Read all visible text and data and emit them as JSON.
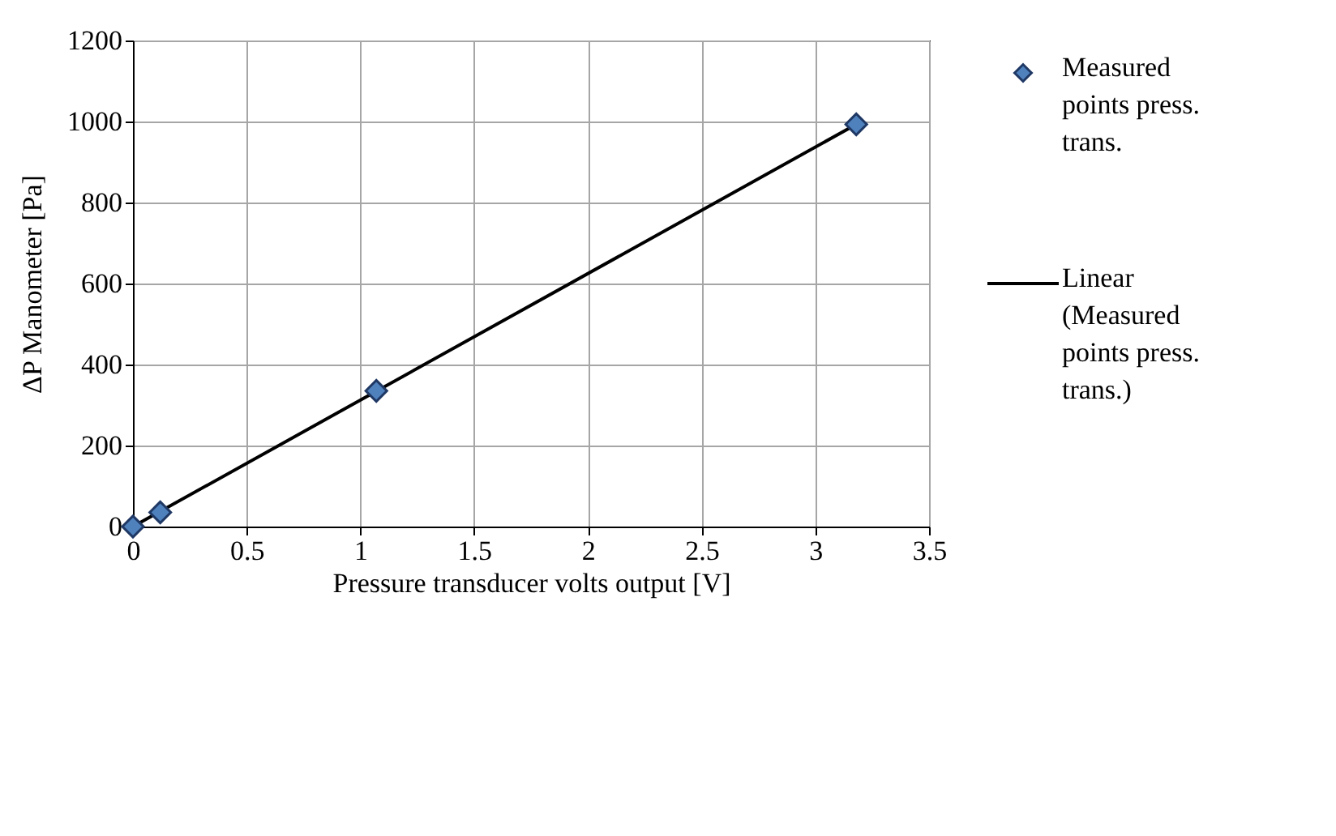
{
  "chart_data": {
    "type": "scatter",
    "xlabel": "Pressure transducer volts output [V]",
    "ylabel": "ΔP Manometer [Pa]",
    "xlim": [
      0,
      3.5
    ],
    "xticks": [
      0,
      0.5,
      1,
      1.5,
      2,
      2.5,
      3,
      3.5
    ],
    "ylim": [
      0,
      1200
    ],
    "yticks": [
      0,
      200,
      400,
      600,
      800,
      1000,
      1200
    ],
    "grid": true,
    "legend": "right",
    "series": [
      {
        "name": "Measured points press. trans.",
        "marker": "diamond",
        "color": "#4f81bd",
        "x": [
          0,
          0.12,
          1.07,
          3.18
        ],
        "values": [
          0,
          35,
          335,
          993
        ]
      },
      {
        "name": "Linear (Measured points press. trans.)",
        "type": "line",
        "line_style": "solid",
        "color": "#000000",
        "x": [
          0,
          3.18
        ],
        "values": [
          0,
          993
        ]
      }
    ]
  }
}
